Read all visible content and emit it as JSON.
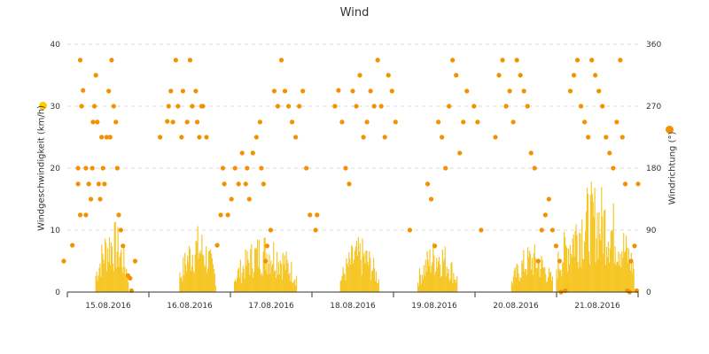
{
  "chart_data": {
    "type": "bar+scatter",
    "title": "Wind",
    "y_left_label": "Windgeschwindigkeit (km/h)",
    "y_right_label": "Windrichtung (°)",
    "y_left_range": [
      0,
      40
    ],
    "y_left_ticks": [
      "0",
      "10",
      "20",
      "30",
      "40"
    ],
    "y_right_range": [
      0,
      360
    ],
    "y_right_ticks": [
      "0",
      "90",
      "180",
      "270",
      "360"
    ],
    "x_range_days": [
      0,
      7
    ],
    "x_labels": [
      "15.08.2016",
      "16.08.2016",
      "17.08.2016",
      "18.08.2016",
      "19.08.2016",
      "20.08.2016",
      "21.08.2016"
    ],
    "grid": "horizontal dashed",
    "colors": {
      "speed": "#f6c626",
      "direction": "#f39200",
      "speed_legend": "#ffcc00",
      "grid": "#d9d9d9",
      "axis": "#333333"
    },
    "series": [
      {
        "name": "Windgeschwindigkeit",
        "kind": "bars",
        "color": "#f6c626",
        "note": "day offset in days from 15.08.2016 00:00 (x) and speed in km/h (y)",
        "day_clusters": [
          {
            "day": 0,
            "start": 0.35,
            "end": 0.75,
            "peak": 12
          },
          {
            "day": 1,
            "start": 0.38,
            "end": 0.82,
            "peak": 11
          },
          {
            "day": 2,
            "start": 0.05,
            "end": 0.82,
            "peak": 10
          },
          {
            "day": 3,
            "start": 0.35,
            "end": 0.82,
            "peak": 9
          },
          {
            "day": 4,
            "start": 0.3,
            "end": 0.78,
            "peak": 9
          },
          {
            "day": 5,
            "start": 0.45,
            "end": 0.95,
            "peak": 8
          },
          {
            "day": 6,
            "start": 0.0,
            "end": 0.95,
            "peak": 18
          }
        ]
      },
      {
        "name": "Windrichtung",
        "kind": "points",
        "color": "#f39200",
        "points": [
          [
            -0.05,
            45
          ],
          [
            0.07,
            68
          ],
          [
            0.18,
            337
          ],
          [
            0.15,
            180
          ],
          [
            0.15,
            157
          ],
          [
            0.18,
            112
          ],
          [
            0.2,
            270
          ],
          [
            0.22,
            293
          ],
          [
            0.26,
            180
          ],
          [
            0.26,
            112
          ],
          [
            0.3,
            157
          ],
          [
            0.33,
            135
          ],
          [
            0.35,
            180
          ],
          [
            0.36,
            247
          ],
          [
            0.38,
            270
          ],
          [
            0.4,
            315
          ],
          [
            0.42,
            247
          ],
          [
            0.44,
            157
          ],
          [
            0.46,
            135
          ],
          [
            0.48,
            225
          ],
          [
            0.5,
            180
          ],
          [
            0.52,
            157
          ],
          [
            0.55,
            225
          ],
          [
            0.58,
            292
          ],
          [
            0.6,
            225
          ],
          [
            0.62,
            337
          ],
          [
            0.65,
            270
          ],
          [
            0.68,
            247
          ],
          [
            0.7,
            180
          ],
          [
            0.72,
            112
          ],
          [
            0.75,
            90
          ],
          [
            0.78,
            67
          ],
          [
            0.85,
            24
          ],
          [
            0.9,
            2
          ],
          [
            0.88,
            20
          ],
          [
            0.95,
            45
          ],
          [
            1.3,
            225
          ],
          [
            1.4,
            248
          ],
          [
            1.42,
            270
          ],
          [
            1.45,
            292
          ],
          [
            1.48,
            247
          ],
          [
            1.52,
            337
          ],
          [
            1.55,
            270
          ],
          [
            1.6,
            225
          ],
          [
            1.62,
            292
          ],
          [
            1.68,
            247
          ],
          [
            1.72,
            337
          ],
          [
            1.75,
            270
          ],
          [
            1.8,
            292
          ],
          [
            1.82,
            247
          ],
          [
            1.85,
            225
          ],
          [
            1.88,
            270
          ],
          [
            1.9,
            270
          ],
          [
            1.95,
            225
          ],
          [
            2.1,
            68
          ],
          [
            2.15,
            112
          ],
          [
            2.18,
            180
          ],
          [
            2.2,
            157
          ],
          [
            2.25,
            112
          ],
          [
            2.3,
            135
          ],
          [
            2.35,
            180
          ],
          [
            2.4,
            157
          ],
          [
            2.45,
            202
          ],
          [
            2.5,
            157
          ],
          [
            2.52,
            180
          ],
          [
            2.55,
            135
          ],
          [
            2.6,
            202
          ],
          [
            2.65,
            225
          ],
          [
            2.7,
            247
          ],
          [
            2.72,
            180
          ],
          [
            2.75,
            157
          ],
          [
            2.78,
            45
          ],
          [
            2.8,
            67
          ],
          [
            2.85,
            90
          ],
          [
            2.9,
            292
          ],
          [
            2.95,
            270
          ],
          [
            3.0,
            337
          ],
          [
            3.05,
            292
          ],
          [
            3.1,
            270
          ],
          [
            3.15,
            247
          ],
          [
            3.2,
            225
          ],
          [
            3.25,
            270
          ],
          [
            3.3,
            292
          ],
          [
            3.35,
            180
          ],
          [
            3.4,
            112
          ],
          [
            3.48,
            90
          ],
          [
            3.5,
            112
          ],
          [
            3.75,
            270
          ],
          [
            3.8,
            293
          ],
          [
            3.85,
            247
          ],
          [
            3.9,
            180
          ],
          [
            3.95,
            157
          ],
          [
            4.0,
            292
          ],
          [
            4.05,
            270
          ],
          [
            4.1,
            315
          ],
          [
            4.15,
            225
          ],
          [
            4.2,
            247
          ],
          [
            4.25,
            292
          ],
          [
            4.3,
            270
          ],
          [
            4.35,
            337
          ],
          [
            4.4,
            270
          ],
          [
            4.45,
            225
          ],
          [
            4.5,
            315
          ],
          [
            4.55,
            292
          ],
          [
            4.6,
            247
          ],
          [
            4.8,
            90
          ],
          [
            5.05,
            157
          ],
          [
            5.1,
            135
          ],
          [
            5.15,
            67
          ],
          [
            5.2,
            247
          ],
          [
            5.25,
            225
          ],
          [
            5.3,
            180
          ],
          [
            5.35,
            270
          ],
          [
            5.4,
            337
          ],
          [
            5.45,
            315
          ],
          [
            5.5,
            202
          ],
          [
            5.55,
            247
          ],
          [
            5.6,
            292
          ],
          [
            5.7,
            270
          ],
          [
            5.75,
            247
          ],
          [
            5.8,
            90
          ],
          [
            6.0,
            225
          ],
          [
            6.05,
            315
          ],
          [
            6.1,
            337
          ],
          [
            6.15,
            270
          ],
          [
            6.2,
            292
          ],
          [
            6.25,
            247
          ],
          [
            6.3,
            337
          ],
          [
            6.35,
            315
          ],
          [
            6.4,
            292
          ],
          [
            6.45,
            270
          ],
          [
            6.5,
            202
          ],
          [
            6.55,
            180
          ],
          [
            6.6,
            45
          ],
          [
            6.65,
            90
          ],
          [
            6.7,
            112
          ],
          [
            6.75,
            135
          ],
          [
            6.8,
            90
          ],
          [
            6.85,
            67
          ],
          [
            6.9,
            45
          ],
          [
            6.92,
            0
          ],
          [
            6.98,
            2
          ],
          [
            7.05,
            292
          ],
          [
            7.1,
            315
          ],
          [
            7.15,
            337
          ],
          [
            7.2,
            270
          ],
          [
            7.25,
            247
          ],
          [
            7.3,
            225
          ],
          [
            7.35,
            337
          ],
          [
            7.4,
            315
          ],
          [
            7.45,
            292
          ],
          [
            7.5,
            270
          ],
          [
            7.55,
            225
          ],
          [
            7.6,
            202
          ],
          [
            7.65,
            180
          ],
          [
            7.7,
            247
          ],
          [
            7.75,
            337
          ],
          [
            7.78,
            225
          ],
          [
            7.82,
            157
          ],
          [
            7.85,
            2
          ],
          [
            7.88,
            0
          ],
          [
            7.9,
            45
          ],
          [
            7.95,
            67
          ],
          [
            7.98,
            2
          ],
          [
            8.0,
            157
          ]
        ]
      }
    ]
  }
}
